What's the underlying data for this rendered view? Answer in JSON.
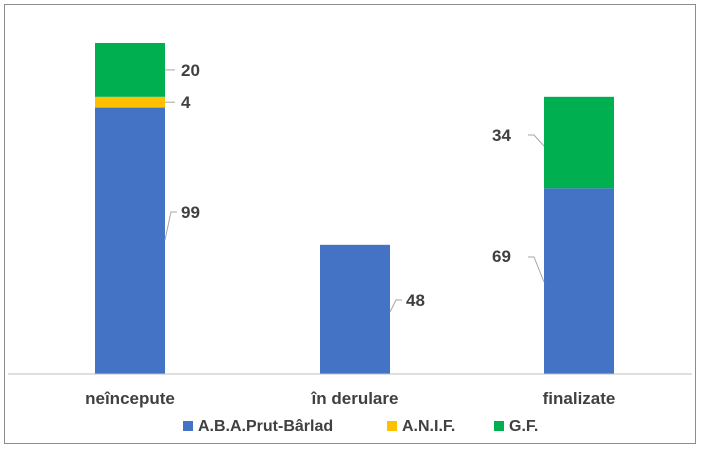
{
  "chart_data": {
    "type": "bar",
    "stacked": true,
    "categories": [
      "neîncepute",
      "în derulare",
      "finalizate"
    ],
    "series": [
      {
        "name": "A.B.A.Prut-Bârlad",
        "values": [
          99,
          48,
          69
        ],
        "color": "#4472C4"
      },
      {
        "name": "A.N.I.F.",
        "values": [
          4,
          0,
          0
        ],
        "color": "#FFC000"
      },
      {
        "name": "G.F.",
        "values": [
          20,
          0,
          34
        ],
        "color": "#00B050"
      }
    ],
    "title": "",
    "xlabel": "",
    "ylabel": "",
    "ylim": [
      0,
      123
    ],
    "grid": false,
    "legend": "bottom"
  }
}
